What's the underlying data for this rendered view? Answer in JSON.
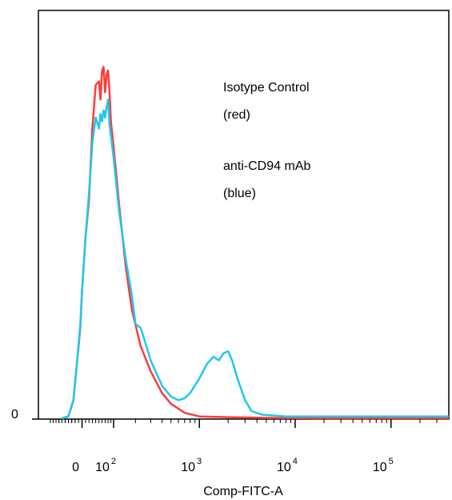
{
  "chart_data": {
    "type": "line",
    "title": "",
    "xlabel": "Comp-FITC-A",
    "ylabel": "",
    "x_scale": "biexponential",
    "grid": false,
    "y_tick_labels": [
      "0"
    ],
    "x_tick_labels": [
      {
        "value": 0,
        "base": "0",
        "exponent": ""
      },
      {
        "value": 100,
        "base": "10",
        "exponent": "2"
      },
      {
        "value": 1000,
        "base": "10",
        "exponent": "3"
      },
      {
        "value": 10000,
        "base": "10",
        "exponent": "4"
      },
      {
        "value": 100000,
        "base": "10",
        "exponent": "5"
      }
    ],
    "annotations": [
      "Isotype Control",
      "(red)",
      "anti-CD94 mAb",
      "(blue)"
    ],
    "colors": {
      "isotype": "#ff3b3b",
      "cd94": "#1ec8ee"
    },
    "series": [
      {
        "color": "#ff3b3b",
        "points": [
          [
            -60,
            0
          ],
          [
            -40,
            0.5
          ],
          [
            -25,
            5
          ],
          [
            -15,
            15
          ],
          [
            -5,
            25
          ],
          [
            0,
            35
          ],
          [
            10,
            50
          ],
          [
            20,
            60
          ],
          [
            30,
            80
          ],
          [
            40,
            92
          ],
          [
            50,
            93
          ],
          [
            55,
            88
          ],
          [
            60,
            96
          ],
          [
            65,
            97
          ],
          [
            70,
            90
          ],
          [
            75,
            95
          ],
          [
            80,
            96
          ],
          [
            85,
            90
          ],
          [
            90,
            82
          ],
          [
            100,
            75
          ],
          [
            120,
            60
          ],
          [
            150,
            42
          ],
          [
            180,
            30
          ],
          [
            230,
            20
          ],
          [
            300,
            13
          ],
          [
            400,
            7
          ],
          [
            500,
            4
          ],
          [
            700,
            1.5
          ],
          [
            1000,
            0.5
          ],
          [
            2000,
            0.3
          ],
          [
            5000,
            0.1
          ],
          [
            20000,
            0
          ],
          [
            400000,
            0
          ]
        ]
      },
      {
        "color": "#1ec8ee",
        "points": [
          [
            -60,
            0
          ],
          [
            -40,
            0.5
          ],
          [
            -25,
            5
          ],
          [
            -15,
            15
          ],
          [
            -5,
            26
          ],
          [
            0,
            35
          ],
          [
            10,
            50
          ],
          [
            20,
            62
          ],
          [
            30,
            76
          ],
          [
            40,
            83
          ],
          [
            50,
            80
          ],
          [
            55,
            84
          ],
          [
            60,
            82
          ],
          [
            65,
            85
          ],
          [
            70,
            83
          ],
          [
            75,
            86
          ],
          [
            80,
            88
          ],
          [
            85,
            81
          ],
          [
            90,
            78
          ],
          [
            100,
            72
          ],
          [
            120,
            58
          ],
          [
            150,
            44
          ],
          [
            180,
            34
          ],
          [
            200,
            26
          ],
          [
            230,
            25
          ],
          [
            260,
            21
          ],
          [
            300,
            16
          ],
          [
            400,
            9
          ],
          [
            500,
            6
          ],
          [
            600,
            5
          ],
          [
            700,
            5.5
          ],
          [
            800,
            7
          ],
          [
            1000,
            11
          ],
          [
            1200,
            15
          ],
          [
            1400,
            17
          ],
          [
            1600,
            16
          ],
          [
            1800,
            18
          ],
          [
            2000,
            18.5
          ],
          [
            2200,
            16
          ],
          [
            2500,
            11
          ],
          [
            3000,
            5
          ],
          [
            3500,
            2
          ],
          [
            4500,
            1
          ],
          [
            8000,
            0.5
          ],
          [
            400000,
            0.5
          ]
        ]
      }
    ]
  }
}
